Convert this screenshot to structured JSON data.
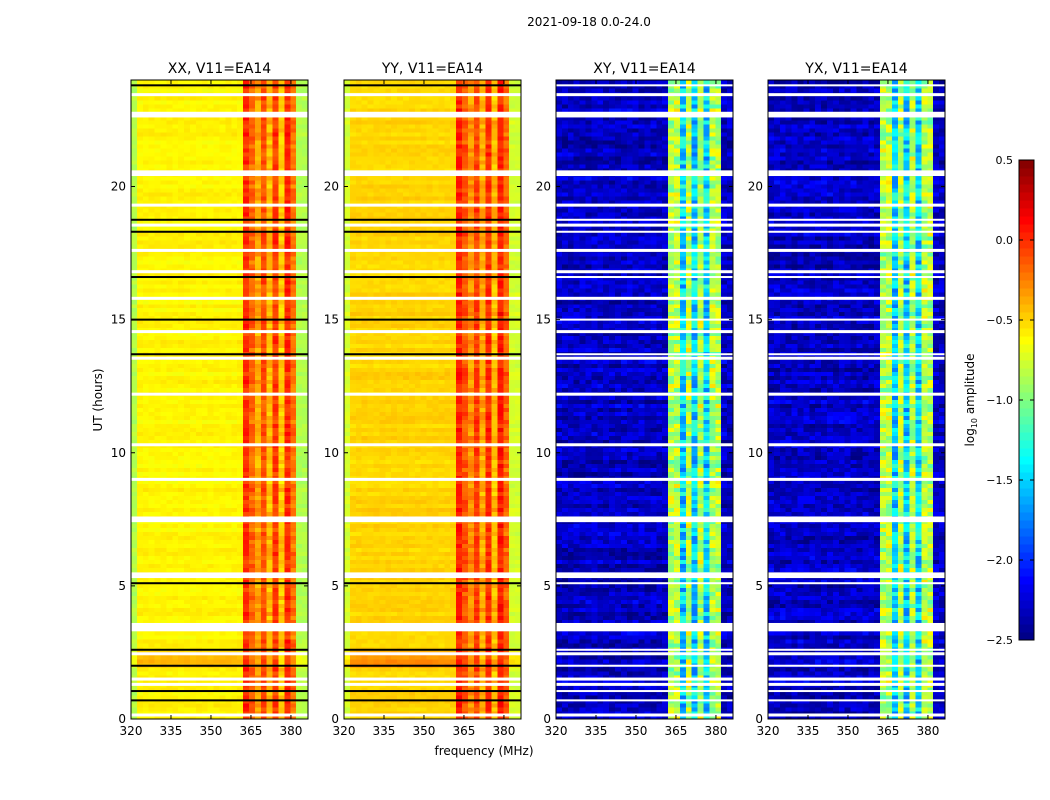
{
  "chart_data": {
    "type": "heatmap",
    "suptitle": "2021-09-18 0.0-24.0",
    "xlabel": "frequency (MHz)",
    "ylabel": "UT (hours)",
    "xlim": [
      320,
      386.4
    ],
    "ylim": [
      0,
      24
    ],
    "xticks": [
      "320",
      "335",
      "350",
      "365",
      "380"
    ],
    "xtick_values": [
      320,
      335,
      350,
      365,
      380
    ],
    "yticks": [
      "0",
      "5",
      "10",
      "15",
      "20"
    ],
    "ytick_values": [
      0,
      5,
      10,
      15,
      20
    ],
    "colormap": "jet",
    "colorbar": {
      "label": "log10 amplitude",
      "label_main": "log",
      "label_sub": "10",
      "label_rest": " amplitude",
      "vmin": -2.5,
      "vmax": 0.5,
      "ticks": [
        "0.5",
        "0.0",
        "−0.5",
        "−1.0",
        "−1.5",
        "−2.0",
        "−2.5"
      ],
      "tick_values": [
        0.5,
        0.0,
        -0.5,
        -1.0,
        -1.5,
        -2.0,
        -2.5
      ]
    },
    "panels": [
      {
        "title": "XX, V11=EA14",
        "pol": "parallel",
        "base_level": -0.6,
        "rfi_band_level": -0.1
      },
      {
        "title": "YY, V11=EA14",
        "pol": "parallel",
        "base_level": -0.5,
        "rfi_band_level": -0.05
      },
      {
        "title": "XY, V11=EA14",
        "pol": "cross",
        "base_level": -2.3,
        "rfi_band_level": -0.85
      },
      {
        "title": "YX, V11=EA14",
        "pol": "cross",
        "base_level": -2.3,
        "rfi_band_level": -0.85
      }
    ],
    "rfi_band_mhz": [
      363,
      382.5
    ],
    "rfi_band_dividers_mhz": [
      367.5,
      372.5,
      377.5
    ],
    "flagged_hours_white": [
      0.15,
      1.3,
      1.5,
      2.45,
      3.35,
      3.45,
      3.55,
      5.35,
      5.45,
      7.45,
      7.55,
      9.0,
      10.3,
      12.2,
      13.55,
      14.55,
      15.8,
      16.8,
      17.6,
      18.55,
      19.3,
      20.45,
      20.55,
      22.65,
      22.75,
      23.45
    ],
    "flagged_hours_black": [
      0.7,
      1.05,
      2.0,
      2.6,
      5.1,
      13.7,
      15.0,
      16.6,
      18.3,
      18.75,
      23.8
    ]
  }
}
